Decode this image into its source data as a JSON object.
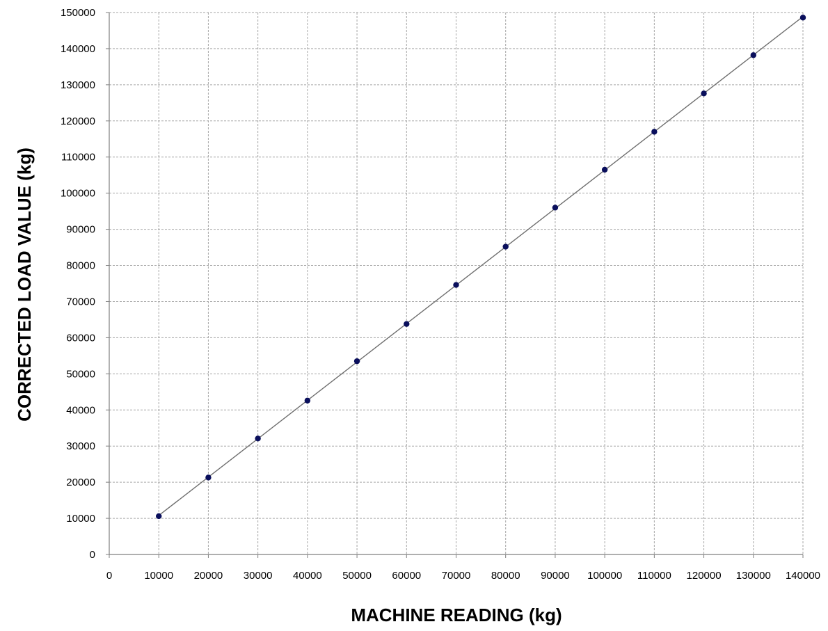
{
  "chart_data": {
    "type": "scatter",
    "xlabel": "MACHINE READING  (kg)",
    "ylabel": "CORRECTED LOAD VALUE  (kg)",
    "xlim": [
      0,
      140000
    ],
    "ylim": [
      0,
      150000
    ],
    "x_ticks": [
      "0",
      "10000",
      "20000",
      "30000",
      "40000",
      "50000",
      "60000",
      "70000",
      "80000",
      "90000",
      "100000",
      "110000",
      "120000",
      "130000",
      "140000"
    ],
    "y_ticks": [
      "0",
      "10000",
      "20000",
      "30000",
      "40000",
      "50000",
      "60000",
      "70000",
      "80000",
      "90000",
      "100000",
      "110000",
      "120000",
      "130000",
      "140000",
      "150000"
    ],
    "grid": true,
    "trendline": true,
    "series": [
      {
        "x": [
          10000,
          20000,
          30000,
          40000,
          50000,
          60000,
          70000,
          80000,
          90000,
          100000,
          110000,
          120000,
          130000,
          140000
        ],
        "y": [
          10600,
          21300,
          32100,
          42600,
          53500,
          63800,
          74600,
          85200,
          96000,
          106500,
          117000,
          127600,
          138200,
          148600
        ]
      }
    ],
    "colors": {
      "points": "#0a0f5c",
      "line": "#6e6e6e",
      "grid": "#a6a6a6"
    }
  }
}
